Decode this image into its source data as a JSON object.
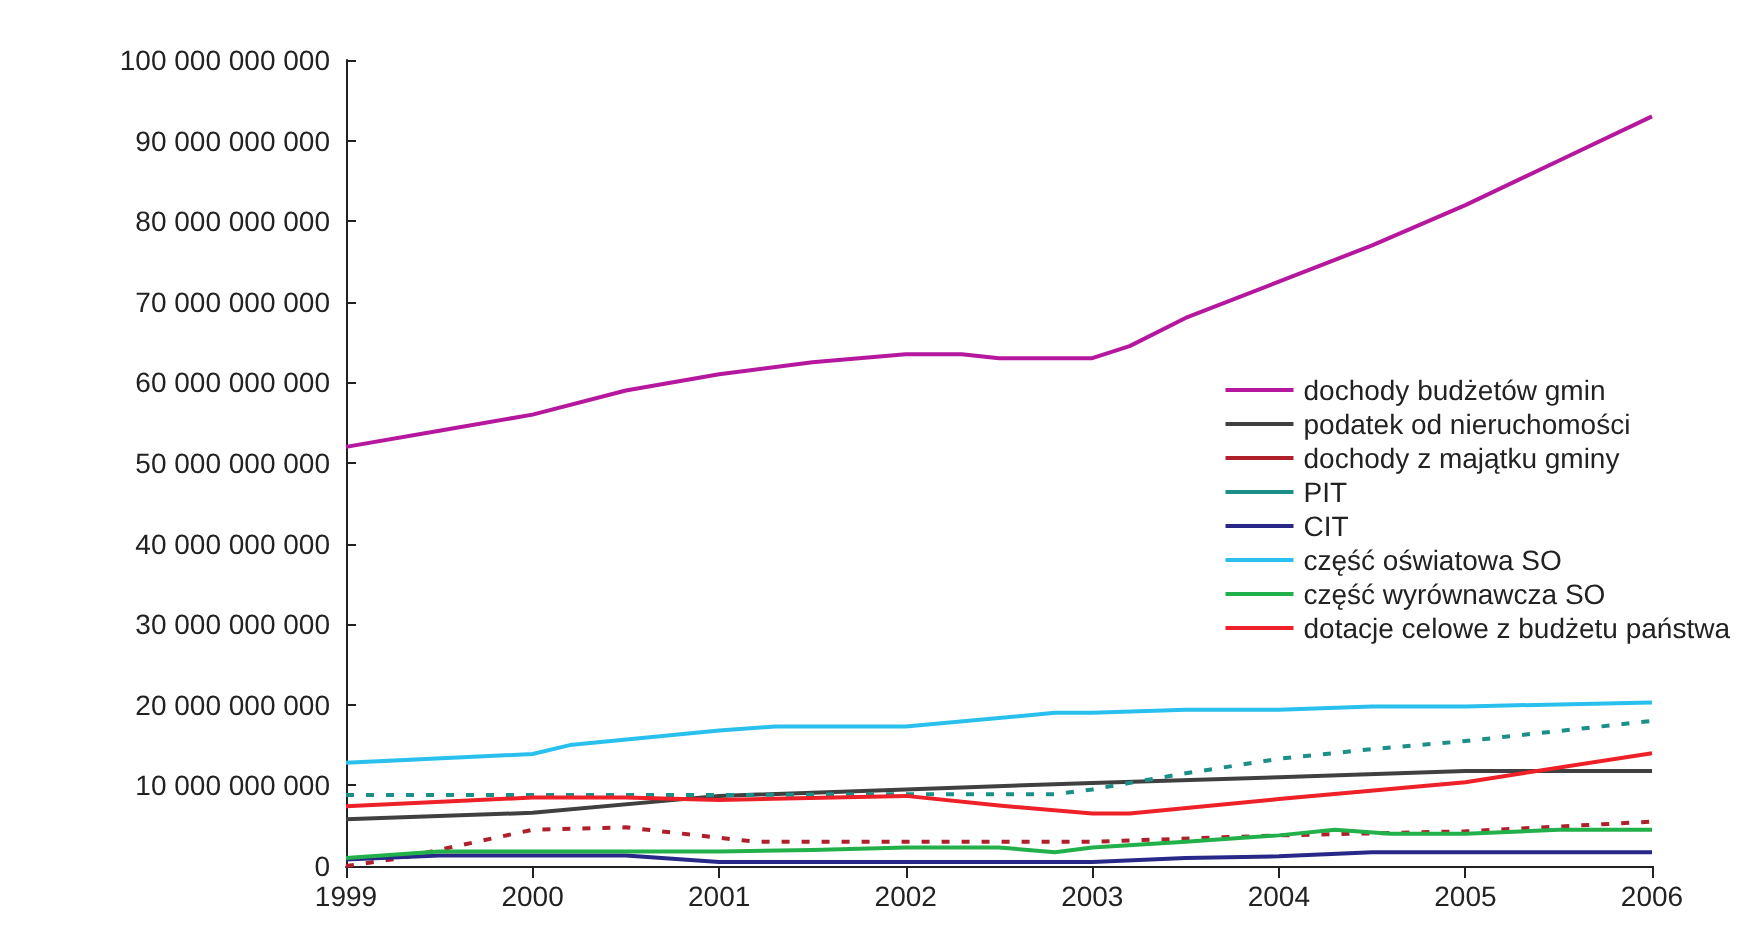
{
  "chart_data": {
    "type": "line",
    "xlim": [
      1999,
      2006
    ],
    "xticks": [
      1999,
      2000,
      2001,
      2002,
      2003,
      2004,
      2005,
      2006
    ],
    "ylim": [
      0,
      100000000000
    ],
    "yticks": [
      {
        "value": 0,
        "label": "0"
      },
      {
        "value": 10000000000,
        "label": "10 000 000 000"
      },
      {
        "value": 20000000000,
        "label": "20 000 000 000"
      },
      {
        "value": 30000000000,
        "label": "30 000 000 000"
      },
      {
        "value": 40000000000,
        "label": "40 000 000 000"
      },
      {
        "value": 50000000000,
        "label": "50 000 000 000"
      },
      {
        "value": 60000000000,
        "label": "60 000 000 000"
      },
      {
        "value": 70000000000,
        "label": "70 000 000 000"
      },
      {
        "value": 80000000000,
        "label": "80 000 000 000"
      },
      {
        "value": 90000000000,
        "label": "90 000 000 000"
      },
      {
        "value": 100000000000,
        "label": "100 000 000 000"
      }
    ],
    "grid": false,
    "legend": "right",
    "marker": "none",
    "series": [
      {
        "name": "dochody budżetów gmin",
        "color": "#b5179e",
        "line_style": "solid",
        "x": [
          1999,
          1999.5,
          2000,
          2000.5,
          2001,
          2001.5,
          2002,
          2002.3,
          2002.5,
          2003,
          2003.2,
          2003.5,
          2004,
          2004.5,
          2005,
          2005.5,
          2006
        ],
        "values": [
          52000000000,
          54000000000,
          56000000000,
          59000000000,
          61000000000,
          62500000000,
          63500000000,
          63500000000,
          63000000000,
          63000000000,
          64500000000,
          68000000000,
          72500000000,
          77000000000,
          82000000000,
          87500000000,
          93000000000
        ]
      },
      {
        "name": "podatek od nieruchomości",
        "color": "#404040",
        "line_style": "solid",
        "x": [
          1999,
          2000,
          2001,
          2002,
          2003,
          2004,
          2005,
          2006
        ],
        "values": [
          5800000000,
          6600000000,
          8700000000,
          9500000000,
          10300000000,
          11000000000,
          11800000000,
          11800000000
        ]
      },
      {
        "name": "dochody z majątku gminy",
        "color": "#b0202a",
        "line_style": "dashed",
        "x": [
          1999,
          1999.3,
          1999.6,
          2000,
          2000.5,
          2001,
          2001.2,
          2002,
          2003,
          2004,
          2005,
          2006
        ],
        "values": [
          0,
          1000000000,
          2500000000,
          4500000000,
          4800000000,
          3500000000,
          3000000000,
          3000000000,
          3000000000,
          3800000000,
          4300000000,
          5500000000
        ]
      },
      {
        "name": "PIT",
        "color": "#1a9088",
        "line_style": "dashed",
        "x": [
          1999,
          2000,
          2001,
          2002,
          2002.8,
          2003,
          2003.5,
          2004,
          2004.5,
          2005,
          2006
        ],
        "values": [
          8800000000,
          8800000000,
          8800000000,
          8900000000,
          8900000000,
          9500000000,
          11500000000,
          13300000000,
          14500000000,
          15500000000,
          18000000000
        ]
      },
      {
        "name": "CIT",
        "color": "#282888",
        "line_style": "solid",
        "x": [
          1999,
          1999.5,
          2000.5,
          2001,
          2003,
          2003.5,
          2004,
          2004.5,
          2006
        ],
        "values": [
          800000000,
          1300000000,
          1300000000,
          500000000,
          500000000,
          1000000000,
          1200000000,
          1700000000,
          1700000000
        ]
      },
      {
        "name": "część oświatowa SO",
        "color": "#29c0ee",
        "line_style": "solid",
        "x": [
          1999,
          2000,
          2000.2,
          2001,
          2001.3,
          2002,
          2002.8,
          2003,
          2003.5,
          2004,
          2004.5,
          2005,
          2006
        ],
        "values": [
          12800000000,
          13900000000,
          15000000000,
          16800000000,
          17300000000,
          17300000000,
          19000000000,
          19000000000,
          19400000000,
          19400000000,
          19800000000,
          19800000000,
          20300000000
        ]
      },
      {
        "name": "część wyrównawcza SO",
        "color": "#22b04a",
        "line_style": "solid",
        "x": [
          1999,
          1999.5,
          2000,
          2001,
          2001.5,
          2002,
          2002.5,
          2002.8,
          2003,
          2003.5,
          2004,
          2004.3,
          2004.6,
          2005,
          2005.5,
          2006
        ],
        "values": [
          1000000000,
          1800000000,
          1800000000,
          1800000000,
          2000000000,
          2300000000,
          2300000000,
          1700000000,
          2300000000,
          3000000000,
          3800000000,
          4500000000,
          4000000000,
          4000000000,
          4500000000,
          4500000000
        ]
      },
      {
        "name": "dotacje celowe z budżetu państwa",
        "color": "#ee2028",
        "line_style": "solid",
        "x": [
          1999,
          2000,
          2000.5,
          2001,
          2002,
          2002.5,
          2003,
          2003.2,
          2004,
          2005,
          2006
        ],
        "values": [
          7400000000,
          8500000000,
          8500000000,
          8200000000,
          8700000000,
          7500000000,
          6500000000,
          6500000000,
          8300000000,
          10400000000,
          14000000000
        ]
      }
    ]
  }
}
